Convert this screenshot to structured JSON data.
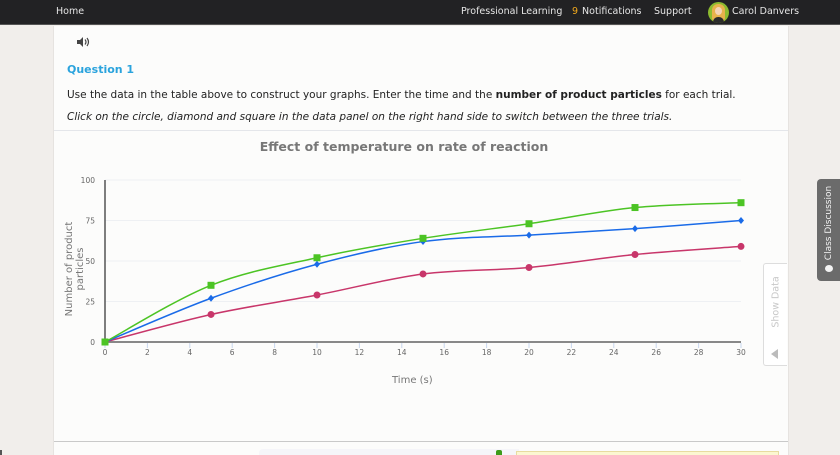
{
  "topbar": {
    "home": "Home",
    "professional_learning": "Professional Learning",
    "notifications_count": "9",
    "notifications_label": "Notifications",
    "support": "Support",
    "user_name": "Carol Danvers"
  },
  "question": {
    "title": "Question 1",
    "text_before": "Use the data in the table above to construct your graphs. Enter the time and the ",
    "text_bold": "number of product particles",
    "text_after": " for each trial.",
    "instruction": "Click on the circle, diamond and square in the data panel on the right hand side to switch between the three trials."
  },
  "side_tabs": {
    "show_data": "Show Data",
    "class_discussion": "Class Discussion"
  },
  "colors": {
    "accent_blue": "#2aa3dd",
    "notification": "#f0a81c",
    "series_green": "#4cc424",
    "series_blue": "#1a6be8",
    "series_red": "#c8366a"
  },
  "chart_data": {
    "type": "line",
    "title": "Effect of temperature on rate of reaction",
    "xlabel": "Time (s)",
    "ylabel": "Number of product particles",
    "xlim": [
      0,
      30
    ],
    "ylim": [
      0,
      100
    ],
    "x_ticks": [
      0,
      2,
      4,
      6,
      8,
      10,
      12,
      14,
      16,
      18,
      20,
      22,
      24,
      26,
      28,
      30
    ],
    "y_ticks": [
      0,
      25,
      50,
      75,
      100
    ],
    "grid": true,
    "x": [
      0,
      5,
      10,
      15,
      20,
      25,
      30
    ],
    "series": [
      {
        "name": "Square trial",
        "marker": "square",
        "color": "#4cc424",
        "values": [
          0,
          35,
          52,
          64,
          73,
          83,
          86
        ]
      },
      {
        "name": "Diamond trial",
        "marker": "diamond",
        "color": "#1a6be8",
        "values": [
          0,
          27,
          48,
          62,
          66,
          70,
          75
        ]
      },
      {
        "name": "Circle trial",
        "marker": "circle",
        "color": "#c8366a",
        "values": [
          0,
          17,
          29,
          42,
          46,
          54,
          59
        ]
      }
    ]
  }
}
